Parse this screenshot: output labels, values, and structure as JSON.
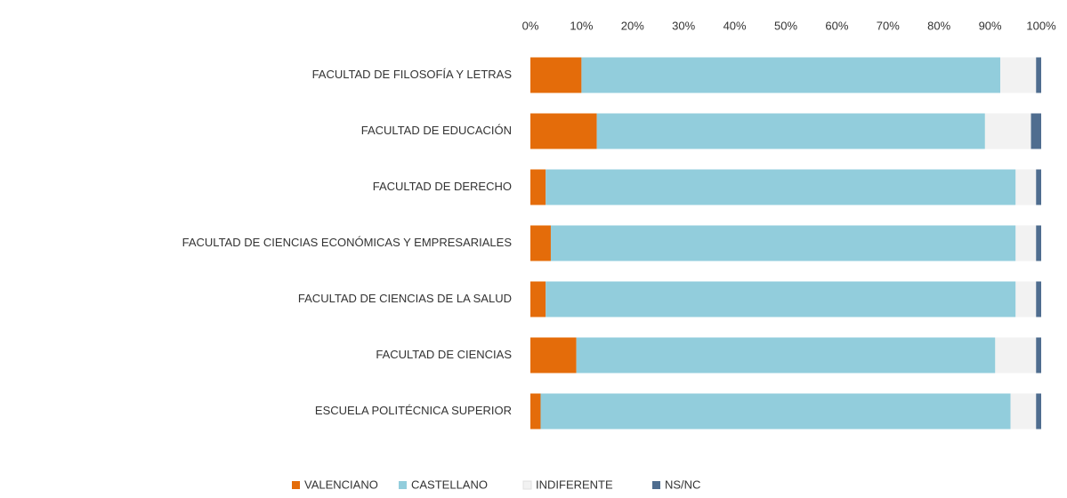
{
  "chart_data": {
    "type": "stacked_barh",
    "categories": [
      "FACULTAD DE FILOSOFÍA Y LETRAS",
      "FACULTAD DE EDUCACIÓN",
      "FACULTAD DE DERECHO",
      "FACULTAD DE CIENCIAS ECONÓMICAS Y EMPRESARIALES",
      "FACULTAD DE CIENCIAS DE LA SALUD",
      "FACULTAD DE CIENCIAS",
      "ESCUELA POLITÉCNICA SUPERIOR"
    ],
    "series": [
      {
        "name": "VALENCIANO",
        "color": "#e46c0a",
        "values": [
          10,
          13,
          3,
          4,
          3,
          9,
          2
        ]
      },
      {
        "name": "CASTELLANO",
        "color": "#92cddc",
        "values": [
          82,
          76,
          92,
          91,
          92,
          82,
          92
        ]
      },
      {
        "name": "INDIFERENTE",
        "color": "#f2f2f2",
        "values": [
          7,
          9,
          4,
          4,
          4,
          8,
          5
        ]
      },
      {
        "name": "NS/NC",
        "color": "#4f6d8f",
        "values": [
          1,
          2,
          1,
          1,
          1,
          1,
          1
        ]
      }
    ],
    "xlim": [
      0,
      100
    ],
    "xticks": [
      {
        "value": 0,
        "label": "0%"
      },
      {
        "value": 10,
        "label": "10%"
      },
      {
        "value": 20,
        "label": "20%"
      },
      {
        "value": 30,
        "label": "30%"
      },
      {
        "value": 40,
        "label": "40%"
      },
      {
        "value": 50,
        "label": "50%"
      },
      {
        "value": 60,
        "label": "60%"
      },
      {
        "value": 70,
        "label": "70%"
      },
      {
        "value": 80,
        "label": "80%"
      },
      {
        "value": 90,
        "label": "90%"
      },
      {
        "value": 100,
        "label": "100%"
      }
    ],
    "legend": "bottom"
  }
}
